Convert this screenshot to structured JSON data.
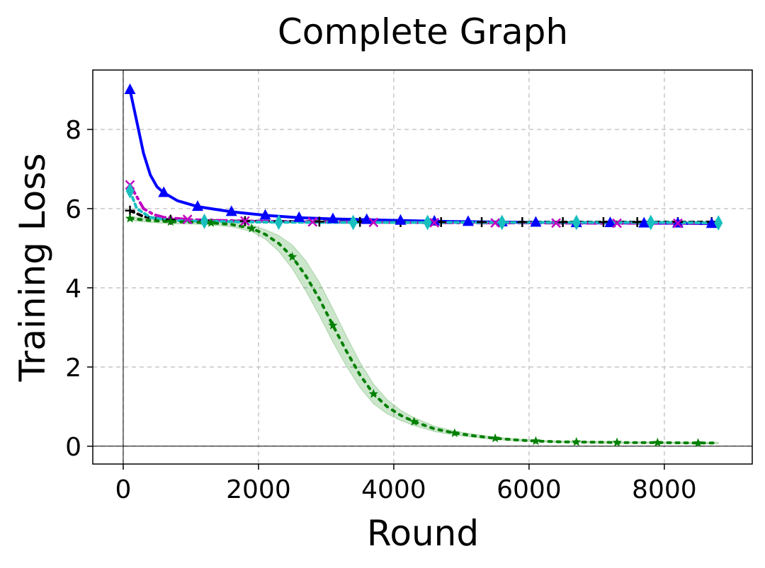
{
  "chart_data": {
    "type": "line",
    "title": "Complete Graph",
    "xlabel": "Round",
    "ylabel": "Training Loss",
    "xlim": [
      -450,
      9300
    ],
    "ylim": [
      -0.45,
      9.5
    ],
    "xticks": [
      0,
      2000,
      4000,
      6000,
      8000
    ],
    "yticks": [
      0,
      2,
      4,
      6,
      8
    ],
    "grid": true,
    "reference_lines": {
      "x": 0,
      "y": 0
    },
    "series": [
      {
        "color": "#000000",
        "marker": "plus",
        "dash": "6 6",
        "x": [
          100,
          300,
          500,
          700,
          1000,
          1500,
          2000,
          3000,
          4000,
          5000,
          6000,
          7000,
          8000,
          8800
        ],
        "y": [
          5.95,
          5.8,
          5.75,
          5.72,
          5.7,
          5.69,
          5.68,
          5.67,
          5.66,
          5.66,
          5.66,
          5.66,
          5.66,
          5.66
        ],
        "marker_x": [
          100,
          700,
          1200,
          1800,
          2300,
          2900,
          3500,
          4100,
          4700,
          5300,
          5900,
          6500,
          7100,
          7600,
          8200,
          8700
        ]
      },
      {
        "color": "#0000ff",
        "marker": "triangle",
        "dash": "",
        "x": [
          100,
          200,
          300,
          400,
          500,
          600,
          800,
          1100,
          1600,
          2100,
          2600,
          3100,
          3600,
          4100,
          4600,
          5100,
          5600,
          6100,
          6700,
          7200,
          7700,
          8200,
          8700
        ],
        "y": [
          9.0,
          8.2,
          7.4,
          6.85,
          6.55,
          6.4,
          6.2,
          6.05,
          5.92,
          5.83,
          5.77,
          5.74,
          5.72,
          5.7,
          5.68,
          5.67,
          5.66,
          5.65,
          5.64,
          5.64,
          5.63,
          5.63,
          5.62
        ],
        "marker_x": [
          100,
          600,
          1100,
          1600,
          2100,
          2600,
          3100,
          3600,
          4100,
          4600,
          5100,
          5600,
          6100,
          6700,
          7200,
          7700,
          8200,
          8700
        ]
      },
      {
        "color": "#c000c0",
        "marker": "x",
        "dash": "14 6 3 6",
        "x": [
          100,
          200,
          300,
          450,
          600,
          800,
          1000,
          1500,
          2000,
          3000,
          4000,
          5000,
          6000,
          7000,
          8000,
          8800
        ],
        "y": [
          6.6,
          6.3,
          6.0,
          5.85,
          5.78,
          5.75,
          5.72,
          5.7,
          5.68,
          5.66,
          5.65,
          5.64,
          5.64,
          5.63,
          5.63,
          5.63
        ],
        "marker_x": [
          100,
          950,
          1800,
          2800,
          3700,
          4600,
          5500,
          6400,
          7300,
          8200
        ]
      },
      {
        "color": "#17bfbf",
        "marker": "diamond",
        "dash": "5 5",
        "x": [
          100,
          200,
          400,
          700,
          1200,
          2000,
          3000,
          4000,
          5000,
          6000,
          7000,
          8000,
          8800
        ],
        "y": [
          6.45,
          6.0,
          5.78,
          5.7,
          5.68,
          5.66,
          5.65,
          5.65,
          5.65,
          5.65,
          5.65,
          5.65,
          5.64
        ],
        "marker_x": [
          100,
          1200,
          2300,
          3400,
          4500,
          5600,
          6700,
          7800,
          8800
        ]
      },
      {
        "color": "#008000",
        "marker": "star",
        "dash": "4 8",
        "x": [
          100,
          400,
          700,
          1000,
          1300,
          1600,
          1900,
          2100,
          2300,
          2500,
          2700,
          2900,
          3100,
          3300,
          3500,
          3700,
          3900,
          4100,
          4300,
          4600,
          4900,
          5200,
          5500,
          5800,
          6100,
          6500,
          7000,
          7500,
          8000,
          8500,
          8800
        ],
        "y": [
          5.75,
          5.7,
          5.67,
          5.66,
          5.64,
          5.6,
          5.5,
          5.35,
          5.12,
          4.78,
          4.3,
          3.72,
          3.05,
          2.4,
          1.8,
          1.32,
          1.0,
          0.78,
          0.62,
          0.44,
          0.33,
          0.26,
          0.2,
          0.16,
          0.13,
          0.11,
          0.1,
          0.09,
          0.09,
          0.08,
          0.08
        ],
        "band": [
          0.05,
          0.05,
          0.05,
          0.05,
          0.05,
          0.06,
          0.08,
          0.12,
          0.2,
          0.3,
          0.38,
          0.42,
          0.42,
          0.38,
          0.32,
          0.25,
          0.18,
          0.13,
          0.1,
          0.07,
          0.05,
          0.04,
          0.03,
          0.03,
          0.02,
          0.02,
          0.02,
          0.02,
          0.02,
          0.02,
          0.02
        ],
        "marker_x": [
          100,
          700,
          1300,
          1900,
          2500,
          3100,
          3700,
          4300,
          4900,
          5500,
          6100,
          6700,
          7300,
          7900,
          8500
        ]
      }
    ]
  }
}
